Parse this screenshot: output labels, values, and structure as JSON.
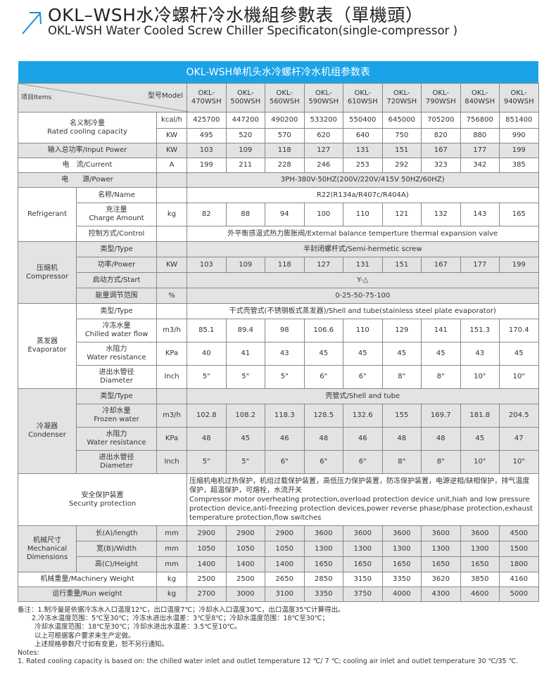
{
  "header": {
    "title_cn": "OKL–WSH水冷螺杆冷水機組參數表（單機頭）",
    "title_en": "OKL-WSH Water Cooled Screw Chiller Specificaton(single-compressor )",
    "accent": "#1a8fd6"
  },
  "table": {
    "band_title": "OKL-WSH单机头水冷螺杆冷水机组参数表",
    "band_color": "#1aa3e8",
    "corner_items": "项目Items",
    "corner_model": "型号Model",
    "models": [
      "OKL-\n470WSH",
      "OKL-\n500WSH",
      "OKL-\n560WSH",
      "OKL-\n590WSH",
      "OKL-\n610WSH",
      "OKL-\n720WSH",
      "OKL-\n790WSH",
      "OKL-\n840WSH",
      "OKL-\n940WSH"
    ],
    "rows": [
      {
        "kind": "merged",
        "label": "名义制冷量\nRated cooling capacity",
        "shade": false,
        "rows": [
          {
            "unit": "kcal/h",
            "values": [
              "425700",
              "447200",
              "490200",
              "533200",
              "550400",
              "645000",
              "705200",
              "756800",
              "851400"
            ]
          },
          {
            "unit": "KW",
            "values": [
              "495",
              "520",
              "570",
              "620",
              "640",
              "750",
              "820",
              "880",
              "990"
            ]
          }
        ]
      },
      {
        "kind": "single",
        "label": "输入总功率/Input Power",
        "unit": "KW",
        "shade": true,
        "values": [
          "103",
          "109",
          "118",
          "127",
          "131",
          "151",
          "167",
          "177",
          "199"
        ]
      },
      {
        "kind": "single",
        "label": "电　流/Current",
        "unit": "A",
        "shade": false,
        "values": [
          "199",
          "211",
          "228",
          "246",
          "253",
          "292",
          "323",
          "342",
          "385"
        ]
      },
      {
        "kind": "single",
        "label": "电　　源/Power",
        "unit": "",
        "shade": true,
        "span": "3PH-380V-50HZ(200V/220V/415V  50HZ/60HZ)"
      },
      {
        "kind": "group",
        "label": "Refrigerant",
        "shade": false,
        "rows": [
          {
            "label": "名称/Name",
            "unit": "",
            "span": "R22(R134a/R407c/R404A)"
          },
          {
            "label": "充注量\nCharge Amount",
            "unit": "kg",
            "values": [
              "82",
              "88",
              "94",
              "100",
              "110",
              "121",
              "132",
              "143",
              "165"
            ]
          },
          {
            "label": "控制方式/Control",
            "unit": "",
            "span": "外平衡感温式热力膨胀阀/External balance temperture thermal expansion valve"
          }
        ]
      },
      {
        "kind": "group",
        "label": "压缩机\nCompressor",
        "shade": true,
        "rows": [
          {
            "label": "类型/Type",
            "unit": "",
            "span": "半封闭螺杆式/Semi-hermetic screw"
          },
          {
            "label": "功率/Power",
            "unit": "KW",
            "values": [
              "103",
              "109",
              "118",
              "127",
              "131",
              "151",
              "167",
              "177",
              "199"
            ]
          },
          {
            "label": "启动方式/Start",
            "unit": "",
            "span": "Y-△"
          },
          {
            "label": "能量调节范围",
            "unit": "%",
            "span": "0-25-50-75-100"
          }
        ]
      },
      {
        "kind": "group",
        "label": "蒸发器\nEvaporator",
        "shade": false,
        "rows": [
          {
            "label": "类型/Type",
            "unit": "",
            "span": "干式壳管式(不锈钢板式蒸发器)/Shell and tube(stainless steel plate evaporator)"
          },
          {
            "label": "冷冻水量\nChilled water flow",
            "unit": "m3/h",
            "values": [
              "85.1",
              "89.4",
              "98",
              "106.6",
              "110",
              "129",
              "141",
              "151.3",
              "170.4"
            ]
          },
          {
            "label": "水阻力\nWater resistance",
            "unit": "KPa",
            "values": [
              "40",
              "41",
              "43",
              "45",
              "45",
              "45",
              "45",
              "43",
              "45"
            ]
          },
          {
            "label": "进出水管径\nDiameter",
            "unit": "Inch",
            "values": [
              "5\"",
              "5\"",
              "5\"",
              "6\"",
              "6\"",
              "8\"",
              "8\"",
              "10\"",
              "10\""
            ]
          }
        ]
      },
      {
        "kind": "group",
        "label": "冷凝器\nCondenser",
        "shade": true,
        "rows": [
          {
            "label": "类型/Type",
            "unit": "",
            "span": "壳管式/Shell and tube"
          },
          {
            "label": "冷却水量\nFrozen water",
            "unit": "m3/h",
            "values": [
              "102.8",
              "108.2",
              "118.3",
              "128.5",
              "132.6",
              "155",
              "169.7",
              "181.8",
              "204.5"
            ]
          },
          {
            "label": "水阻力\nWater resistance",
            "unit": "KPa",
            "values": [
              "48",
              "45",
              "46",
              "48",
              "46",
              "48",
              "48",
              "45",
              "47"
            ]
          },
          {
            "label": "进出水管径\nDiameter",
            "unit": "Inch",
            "values": [
              "5\"",
              "5\"",
              "6\"",
              "6\"",
              "6\"",
              "8\"",
              "8\"",
              "10\"",
              "10\""
            ]
          }
        ]
      },
      {
        "kind": "wide",
        "label": "安全保护装置\nSecurity protection",
        "shade": false,
        "span": "压缩机电机过热保护，机组过载保护装置，高低压力保护装置，防冻保护装置，电源逆相/缺相保护，排气温度保护，超温保护，可熔栓，水流开关\nCompressor motor overheating protection,overload protection device unit,hiah and low pressure protection device,anti-freezing protection devices,power reverse phase/phase protection,exhaust temperature protection,flow switches"
      },
      {
        "kind": "group",
        "label": "机械尺寸\nMechanical\nDimensions",
        "shade": true,
        "rows": [
          {
            "label": "长(A)/length",
            "unit": "mm",
            "values": [
              "2900",
              "2900",
              "2900",
              "3600",
              "3600",
              "3600",
              "3600",
              "3600",
              "4500"
            ]
          },
          {
            "label": "宽(B)/Width",
            "unit": "mm",
            "values": [
              "1050",
              "1050",
              "1050",
              "1300",
              "1300",
              "1300",
              "1300",
              "1300",
              "1500"
            ]
          },
          {
            "label": "高(C)/Height",
            "unit": "mm",
            "values": [
              "1400",
              "1400",
              "1400",
              "1650",
              "1650",
              "1650",
              "1650",
              "1650",
              "1800"
            ]
          }
        ]
      },
      {
        "kind": "single",
        "label": "机械重量/Machinery Weight",
        "unit": "kg",
        "shade": false,
        "values": [
          "2500",
          "2500",
          "2650",
          "2850",
          "3150",
          "3350",
          "3620",
          "3850",
          "4160"
        ]
      },
      {
        "kind": "single",
        "label": "运行重量/Run weight",
        "unit": "kg",
        "shade": true,
        "values": [
          "2700",
          "3000",
          "3100",
          "3350",
          "3750",
          "4000",
          "4300",
          "4600",
          "5000"
        ]
      }
    ]
  },
  "notes": {
    "lines": [
      "备注：1.制冷量是依据冷冻水入口温度12℃，出口温度7℃；冷却水入口温度30℃，出口温度35℃计算得出。",
      "2.冷冻水温度范围：5℃至30℃；冷冻水进出水温差：3℃至8℃；冷却水温度范围：18℃至30℃；",
      "冷却水温度范围：18℃至30℃；冷却水进出水温差：3.5℃至10℃。",
      "以上可根据客户要求来生产定做。",
      "上述规格参数尺寸如有变更，恕不另行通知。",
      "Notes:",
      "1. Rated cooling capacity is based on: the chilled water inlet and outlet temperature 12 ℃/ 7 ℃; cooling air inlet and outlet temperature 30 ℃/35 ℃."
    ]
  }
}
